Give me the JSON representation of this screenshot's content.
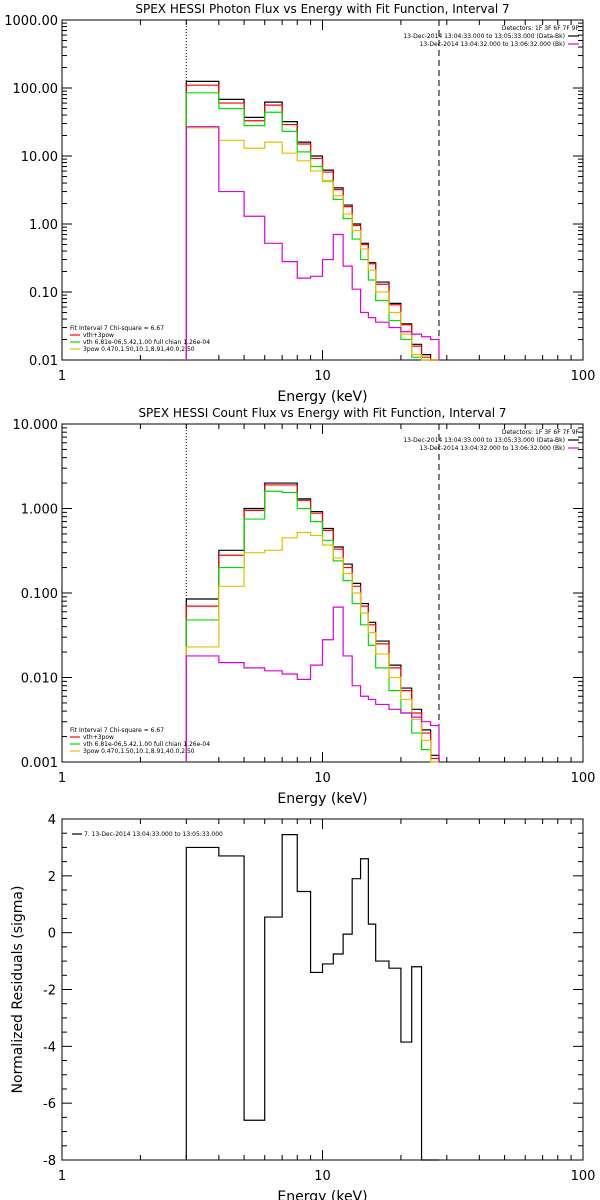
{
  "chart_data": [
    {
      "type": "line",
      "title": "SPEX HESSI Photon Flux vs Energy with Fit Function, Interval 7",
      "xlabel": "Energy (keV)",
      "ylabel": "",
      "xscale": "log",
      "yscale": "log",
      "xlim": [
        1,
        100
      ],
      "ylim": [
        0.01,
        1000
      ],
      "xticks": [
        {
          "v": 1,
          "label": "1"
        },
        {
          "v": 10,
          "label": "10"
        },
        {
          "v": 100,
          "label": "100"
        }
      ],
      "yticks": [
        {
          "v": 0.01,
          "label": "0.01"
        },
        {
          "v": 0.1,
          "label": "0.10"
        },
        {
          "v": 1,
          "label": "1.00"
        },
        {
          "v": 10,
          "label": "10.00"
        },
        {
          "v": 100,
          "label": "100.00"
        },
        {
          "v": 1000,
          "label": "1000.00"
        }
      ],
      "vlines": [
        {
          "x": 3,
          "style": "dotted"
        },
        {
          "x": 28,
          "style": "dashed"
        }
      ],
      "edges": [
        3,
        4,
        5,
        6,
        7,
        8,
        9,
        10,
        11,
        12,
        13,
        14,
        15,
        16,
        18,
        20,
        22,
        24,
        26,
        28
      ],
      "series": [
        {
          "name": "",
          "color": "#000000",
          "values": [
            125,
            68,
            37,
            62,
            32,
            16,
            10,
            6.2,
            3.4,
            1.9,
            1.0,
            0.52,
            0.27,
            0.14,
            0.068,
            0.034,
            0.017,
            0.012,
            0.008
          ]
        },
        {
          "name": "vth+3pow",
          "color": "#ff0000",
          "values": [
            110,
            60,
            33,
            56,
            29,
            15,
            9.2,
            5.8,
            3.2,
            1.8,
            0.95,
            0.5,
            0.26,
            0.13,
            0.065,
            0.033,
            0.016,
            0.011,
            0.0075
          ]
        },
        {
          "name": "vth 6.81e-06,5.42,1.00  full chian 1.26e-04",
          "color": "#00e000",
          "values": [
            85,
            50,
            28,
            44,
            23,
            11.5,
            7.0,
            4.3,
            2.3,
            1.2,
            0.6,
            0.3,
            0.15,
            0.075,
            0.038,
            0.02,
            0.011,
            0.008,
            0.005
          ]
        },
        {
          "name": "3pow 0.470,1.50,10.1,8.91,40.0,2.50",
          "color": "#e6c000",
          "values": [
            26,
            17,
            13,
            16,
            11,
            8.5,
            6.0,
            4.2,
            2.6,
            1.4,
            0.8,
            0.43,
            0.21,
            0.1,
            0.05,
            0.024,
            0.012,
            0.008,
            0.0055
          ]
        },
        {
          "name": "",
          "color": "#dd00dd",
          "values": [
            27,
            3.0,
            1.3,
            0.52,
            0.28,
            0.16,
            0.17,
            0.3,
            0.7,
            0.24,
            0.11,
            0.05,
            0.042,
            0.036,
            0.03,
            0.026,
            0.024,
            0.022,
            0.02
          ]
        }
      ],
      "fit_label": "Fit Interval  7    Chi-square = 6.67",
      "legend_top": [
        {
          "text": "Detectors: 1F 3F 6F 7F 9F",
          "color": ""
        },
        {
          "text": "13-Dec-2014 13:04:33.000 to 13:05:33.000 (Data-Bk)",
          "color": "#000000"
        },
        {
          "text": "13-Dec-2014 13:04:32.000 to 13:06:32.000 (Bk)",
          "color": "#dd00dd"
        }
      ],
      "legend_bottom": [
        {
          "text": "vth+3pow",
          "color": "#ff0000"
        },
        {
          "text": "vth 6.81e-06,5.42,1.00  full chian 1.26e-04",
          "color": "#00e000"
        },
        {
          "text": "3pow 0.470,1.50,10.1,8.91,40.0,2.50",
          "color": "#e6c000"
        }
      ]
    },
    {
      "type": "line",
      "title": "SPEX HESSI Count Flux vs Energy with Fit Function, Interval 7",
      "xlabel": "Energy (keV)",
      "ylabel": "",
      "xscale": "log",
      "yscale": "log",
      "xlim": [
        1,
        100
      ],
      "ylim": [
        0.001,
        10
      ],
      "xticks": [
        {
          "v": 1,
          "label": "1"
        },
        {
          "v": 10,
          "label": "10"
        },
        {
          "v": 100,
          "label": "100"
        }
      ],
      "yticks": [
        {
          "v": 0.001,
          "label": "0.001"
        },
        {
          "v": 0.01,
          "label": "0.010"
        },
        {
          "v": 0.1,
          "label": "0.100"
        },
        {
          "v": 1,
          "label": "1.000"
        },
        {
          "v": 10,
          "label": "10.000"
        }
      ],
      "vlines": [
        {
          "x": 3,
          "style": "dotted"
        },
        {
          "x": 28,
          "style": "dashed"
        }
      ],
      "edges": [
        3,
        4,
        5,
        6,
        7,
        8,
        9,
        10,
        11,
        12,
        13,
        14,
        15,
        16,
        18,
        20,
        22,
        24,
        26,
        28
      ],
      "series": [
        {
          "name": "",
          "color": "#000000",
          "values": [
            0.085,
            0.32,
            1.0,
            2.0,
            2.0,
            1.3,
            0.92,
            0.58,
            0.35,
            0.22,
            0.13,
            0.075,
            0.045,
            0.027,
            0.014,
            0.0075,
            0.0042,
            0.0024,
            0.0012
          ]
        },
        {
          "name": "vth+3pow",
          "color": "#ff0000",
          "values": [
            0.07,
            0.28,
            0.95,
            1.9,
            1.9,
            1.25,
            0.88,
            0.55,
            0.33,
            0.2,
            0.12,
            0.07,
            0.042,
            0.025,
            0.013,
            0.007,
            0.0038,
            0.0022,
            0.0011
          ]
        },
        {
          "name": "vth 6.81e-06,5.42,1.00  full chian 1.26e-04",
          "color": "#00e000",
          "values": [
            0.048,
            0.2,
            0.75,
            1.6,
            1.55,
            1.0,
            0.7,
            0.42,
            0.24,
            0.14,
            0.075,
            0.042,
            0.024,
            0.013,
            0.007,
            0.0038,
            0.0022,
            0.0014,
            0.0009
          ]
        },
        {
          "name": "3pow 0.470,1.50,10.1,8.91,40.0,2.50",
          "color": "#e6c000",
          "values": [
            0.023,
            0.12,
            0.3,
            0.32,
            0.45,
            0.52,
            0.48,
            0.37,
            0.26,
            0.17,
            0.1,
            0.058,
            0.034,
            0.019,
            0.01,
            0.0055,
            0.0032,
            0.0018,
            0.001
          ]
        },
        {
          "name": "",
          "color": "#dd00dd",
          "values": [
            0.018,
            0.015,
            0.013,
            0.012,
            0.011,
            0.0095,
            0.014,
            0.028,
            0.068,
            0.018,
            0.008,
            0.006,
            0.0055,
            0.0048,
            0.0042,
            0.0038,
            0.0034,
            0.003,
            0.0027
          ]
        }
      ],
      "fit_label": "Fit Interval  7    Chi-square = 6.67",
      "legend_top": [
        {
          "text": "Detectors: 1F 3F 6F 7F 9F",
          "color": ""
        },
        {
          "text": "13-Dec-2014 13:04:33.000 to 13:05:33.000 (Data-Bk)",
          "color": "#000000"
        },
        {
          "text": "13-Dec-2014 13:04:32.000 to 13:06:32.000 (Bk)",
          "color": "#dd00dd"
        }
      ],
      "legend_bottom": [
        {
          "text": "vth+3pow",
          "color": "#ff0000"
        },
        {
          "text": "vth 6.81e-06,5.42,1.00  full chian 1.26e-04",
          "color": "#00e000"
        },
        {
          "text": "3pow 0.470,1.50,10.1,8.91,40.0,2.50",
          "color": "#e6c000"
        }
      ]
    },
    {
      "type": "line",
      "title": "",
      "xlabel": "Energy (keV)",
      "ylabel": "Normalized Residuals (sigma)",
      "xscale": "log",
      "yscale": "linear",
      "xlim": [
        1,
        100
      ],
      "ylim": [
        -8,
        4
      ],
      "xticks": [
        {
          "v": 1,
          "label": "1"
        },
        {
          "v": 10,
          "label": "10"
        },
        {
          "v": 100,
          "label": "100"
        }
      ],
      "yticks": [
        {
          "v": -8,
          "label": "-8"
        },
        {
          "v": -6,
          "label": "-6"
        },
        {
          "v": -4,
          "label": "-4"
        },
        {
          "v": -2,
          "label": "-2"
        },
        {
          "v": 0,
          "label": "0"
        },
        {
          "v": 2,
          "label": "2"
        },
        {
          "v": 4,
          "label": "4"
        }
      ],
      "edges": [
        3,
        4,
        5,
        6,
        7,
        8,
        9,
        10,
        11,
        12,
        13,
        14,
        15,
        16,
        18,
        20,
        22,
        24,
        26,
        28
      ],
      "series": [
        {
          "name": "7. 13-Dec-2014 13:04:33.000 to 13:05:33.000",
          "color": "#000000",
          "values": [
            3.0,
            2.7,
            -6.6,
            0.55,
            3.45,
            1.45,
            -1.4,
            -1.1,
            -0.75,
            -0.05,
            1.9,
            2.6,
            0.3,
            -1.0,
            -1.25,
            -3.85,
            -1.2,
            -8.0,
            -8.0
          ]
        }
      ],
      "legend_top": [
        {
          "text": "7. 13-Dec-2014 13:04:33.000 to 13:05:33.000",
          "color": "#000000"
        }
      ]
    }
  ]
}
